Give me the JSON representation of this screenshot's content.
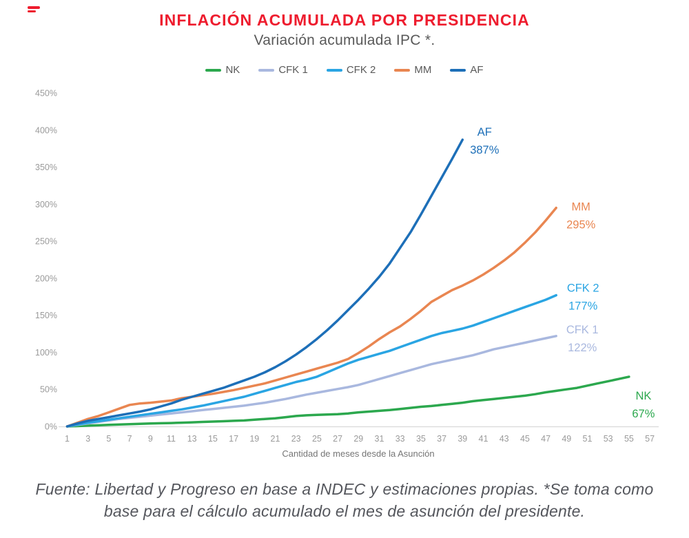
{
  "brand": {
    "logo_color": "#ee1c2e"
  },
  "colors": {
    "title": "#ee1c2e",
    "subtitle_text": "#595959",
    "axis_text": "#9a9a9a",
    "axis_title_text": "#757575",
    "axis_line": "#d9d9d9",
    "footer_text": "#54565c"
  },
  "header": {
    "title": "INFLACIÓN ACUMULADA POR PRESIDENCIA",
    "subtitle": "Variación acumulada IPC *."
  },
  "footer": {
    "line1": "Fuente: Libertad y Progreso en base a INDEC y estimaciones propias. *Se toma como",
    "line2": "base para el cálculo acumulado el mes de asunción del presidente."
  },
  "chart_data": {
    "type": "line",
    "title": "INFLACIÓN ACUMULADA POR PRESIDENCIA",
    "subtitle": "Variación acumulada IPC *.",
    "xlabel": "Cantidad de meses desde la Asunción",
    "ylabel": "",
    "xlim": [
      1,
      57
    ],
    "ylim": [
      0,
      450
    ],
    "grid": false,
    "legend_position": "top-center",
    "x_ticks": [
      1,
      3,
      5,
      7,
      9,
      11,
      13,
      15,
      17,
      19,
      21,
      23,
      25,
      27,
      29,
      31,
      33,
      35,
      37,
      39,
      41,
      43,
      45,
      47,
      49,
      51,
      53,
      55,
      57
    ],
    "y_tick_labels": [
      "0%",
      "50%",
      "100%",
      "150%",
      "200%",
      "250%",
      "300%",
      "350%",
      "400%",
      "450%"
    ],
    "y_tick_values": [
      0,
      50,
      100,
      150,
      200,
      250,
      300,
      350,
      400,
      450
    ],
    "series": [
      {
        "id": "nk",
        "name": "NK",
        "color": "#2ca84e",
        "label": {
          "text": "NK",
          "value": "67%",
          "dx": 21,
          "dy": 33
        },
        "end_month": 55,
        "end_value_pct": 67,
        "values": [
          0,
          0.5,
          1,
          1.5,
          2,
          2.5,
          3,
          3.5,
          4,
          4.3,
          4.6,
          5,
          5.5,
          6,
          6.5,
          7,
          7.5,
          8,
          9,
          10,
          11,
          12.5,
          14,
          15,
          15.5,
          16,
          16.5,
          17.5,
          19,
          20,
          21,
          22,
          23.5,
          25,
          26.5,
          27.5,
          29,
          30.5,
          32,
          34,
          35.5,
          37,
          38.5,
          40,
          41.5,
          43.5,
          46,
          48,
          50,
          52,
          55,
          58,
          61,
          64,
          67
        ]
      },
      {
        "id": "cfk1",
        "name": "CFK 1",
        "color": "#a9b8df",
        "label": {
          "text": "CFK 1",
          "value": "122%",
          "dx": 38,
          "dy": -4
        },
        "end_month": 48,
        "end_value_pct": 122,
        "values": [
          0,
          2,
          4,
          6,
          8,
          10,
          11.5,
          13,
          14.5,
          16,
          17.5,
          19,
          20.5,
          22,
          23.5,
          25,
          26.5,
          28,
          30,
          32,
          34.5,
          37,
          40,
          43,
          45.5,
          48,
          50.5,
          53,
          56,
          60,
          64,
          68,
          72,
          76,
          80,
          84,
          87,
          90,
          93,
          96,
          100,
          104,
          107,
          110,
          113,
          116,
          119,
          122
        ]
      },
      {
        "id": "cfk2",
        "name": "CFK 2",
        "color": "#2aa5e3",
        "label": {
          "text": "CFK 2",
          "value": "177%",
          "dx": 39,
          "dy": -5
        },
        "end_month": 48,
        "end_value_pct": 177,
        "values": [
          0,
          2.5,
          5,
          7,
          9,
          11,
          13,
          15,
          17,
          19,
          21,
          23,
          25.5,
          28,
          31,
          34,
          37,
          40,
          44,
          48,
          52,
          56,
          60,
          63,
          67,
          73,
          79,
          85,
          90,
          94,
          98,
          102,
          107,
          112,
          117,
          122,
          126,
          129,
          132,
          136,
          141,
          146,
          151,
          156,
          161,
          166,
          171,
          177
        ]
      },
      {
        "id": "mm",
        "name": "MM",
        "color": "#e98651",
        "label": {
          "text": "MM",
          "value": "295%",
          "dx": 36,
          "dy": 4
        },
        "end_month": 48,
        "end_value_pct": 295,
        "values": [
          0,
          5,
          10,
          14,
          19,
          24,
          29,
          31,
          32,
          33.5,
          35,
          38,
          40,
          42,
          44,
          46.5,
          49,
          52,
          55,
          58,
          62,
          66,
          70,
          74,
          78,
          82,
          86,
          91,
          99,
          108,
          118,
          127,
          135,
          145,
          156,
          168,
          176,
          184,
          190,
          197,
          205,
          214,
          224,
          235,
          248,
          262,
          278,
          295
        ]
      },
      {
        "id": "af",
        "name": "AF",
        "color": "#1d6fb8",
        "label": {
          "text": "AF",
          "value": "387%",
          "dx": 32,
          "dy": -6
        },
        "end_month": 39,
        "end_value_pct": 387,
        "values": [
          0,
          4,
          7.5,
          10,
          12.5,
          15,
          17.5,
          20,
          23,
          27,
          31,
          36,
          40,
          44,
          48,
          52,
          57,
          62,
          67,
          73,
          80,
          88,
          97,
          107,
          118,
          130,
          143,
          157,
          171,
          186,
          202,
          220,
          241,
          262,
          286,
          311,
          336,
          361,
          387
        ]
      }
    ]
  }
}
